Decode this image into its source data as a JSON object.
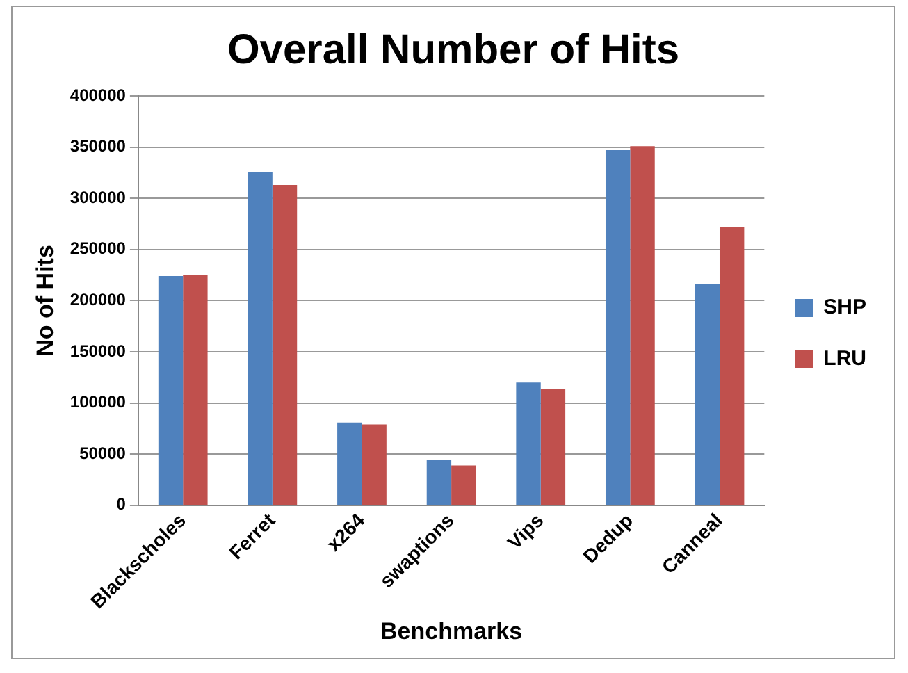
{
  "chart_data": {
    "type": "bar",
    "title": "Overall Number of Hits",
    "xlabel": "Benchmarks",
    "ylabel": "No of Hits",
    "categories": [
      "Blackscholes",
      "Ferret",
      "x264",
      "swaptions",
      "Vips",
      "Dedup",
      "Canneal"
    ],
    "series": [
      {
        "name": "SHP",
        "color": "#4f81bd",
        "values": [
          224000,
          326000,
          81000,
          44000,
          120000,
          347000,
          216000
        ]
      },
      {
        "name": "LRU",
        "color": "#c0504d",
        "values": [
          225000,
          313000,
          79000,
          39000,
          114000,
          351000,
          272000
        ]
      }
    ],
    "ylim": [
      0,
      400000
    ],
    "yticks": [
      0,
      50000,
      100000,
      150000,
      200000,
      250000,
      300000,
      350000,
      400000
    ],
    "grid": "y",
    "legend": "right"
  }
}
